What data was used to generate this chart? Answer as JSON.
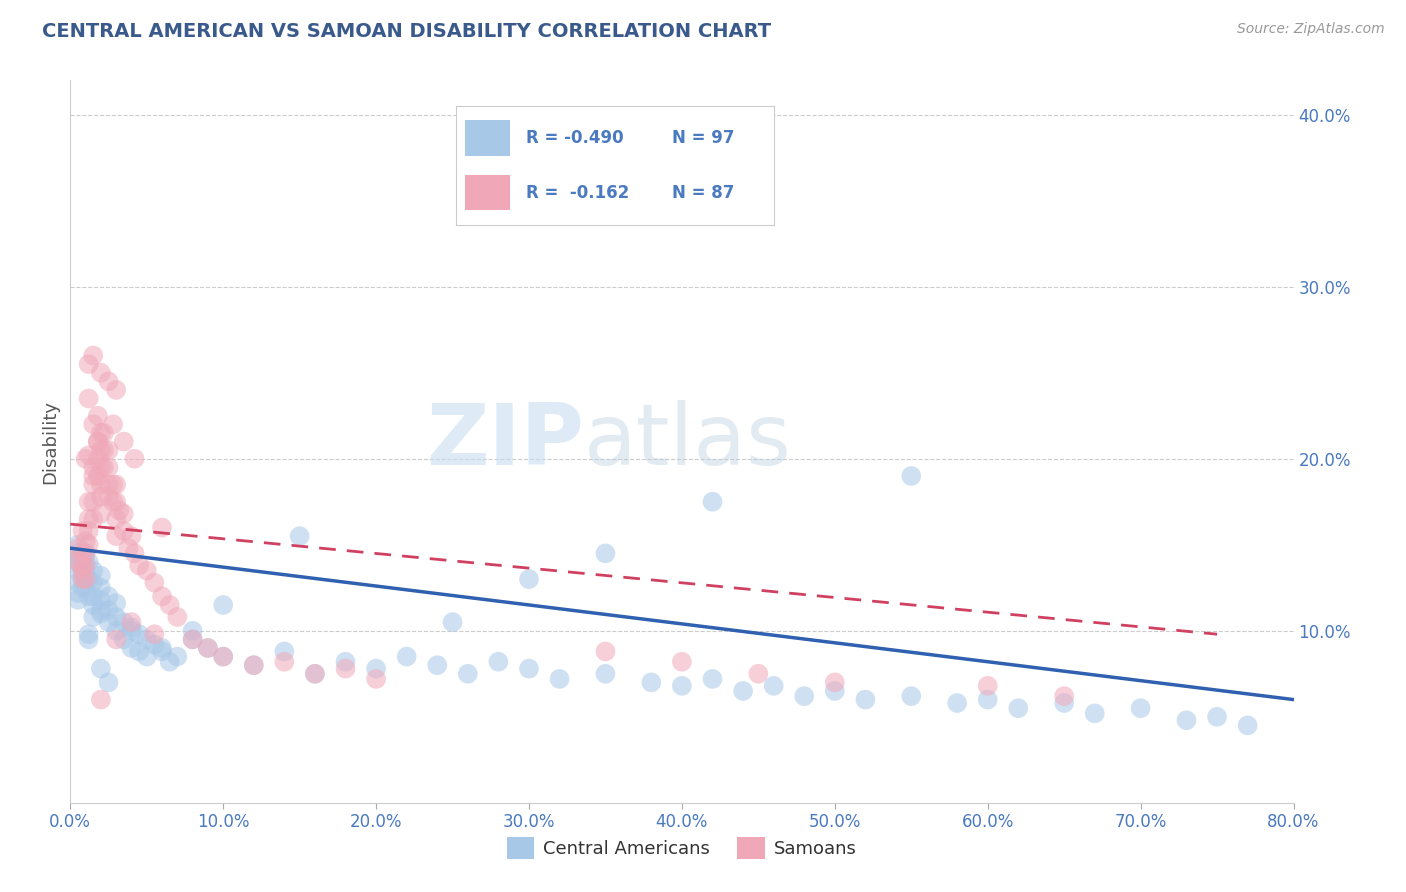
{
  "title": "CENTRAL AMERICAN VS SAMOAN DISABILITY CORRELATION CHART",
  "source": "Source: ZipAtlas.com",
  "ylabel": "Disability",
  "title_color": "#3a5a8c",
  "source_color": "#999999",
  "axis_label_color": "#555555",
  "tick_color": "#4a7abf",
  "background_color": "#ffffff",
  "xlim": [
    0.0,
    0.8
  ],
  "ylim": [
    0.0,
    0.42
  ],
  "xticks": [
    0.0,
    0.1,
    0.2,
    0.3,
    0.4,
    0.5,
    0.6,
    0.7,
    0.8
  ],
  "yticks": [
    0.1,
    0.2,
    0.3,
    0.4
  ],
  "ytick_labels": [
    "10.0%",
    "20.0%",
    "30.0%",
    "40.0%"
  ],
  "xtick_labels": [
    "0.0%",
    "10.0%",
    "20.0%",
    "30.0%",
    "40.0%",
    "50.0%",
    "60.0%",
    "70.0%",
    "80.0%"
  ],
  "grid_color": "#cccccc",
  "watermark_zip": "ZIP",
  "watermark_atlas": "atlas",
  "blue_color": "#a8c8e8",
  "pink_color": "#f0a8b8",
  "blue_line_color": "#3060b0",
  "pink_line_color": "#d04060",
  "legend_text_color": "#4a7abf",
  "legend_label_blue": "Central Americans",
  "legend_label_pink": "Samoans",
  "blue_scatter_x": [
    0.005,
    0.005,
    0.005,
    0.008,
    0.008,
    0.008,
    0.008,
    0.01,
    0.01,
    0.01,
    0.01,
    0.01,
    0.012,
    0.012,
    0.012,
    0.015,
    0.015,
    0.015,
    0.015,
    0.02,
    0.02,
    0.02,
    0.02,
    0.025,
    0.025,
    0.025,
    0.03,
    0.03,
    0.03,
    0.035,
    0.035,
    0.04,
    0.04,
    0.045,
    0.045,
    0.05,
    0.05,
    0.055,
    0.06,
    0.065,
    0.07,
    0.08,
    0.09,
    0.1,
    0.12,
    0.14,
    0.16,
    0.18,
    0.2,
    0.22,
    0.24,
    0.26,
    0.28,
    0.3,
    0.32,
    0.35,
    0.38,
    0.4,
    0.42,
    0.44,
    0.46,
    0.48,
    0.5,
    0.52,
    0.55,
    0.58,
    0.6,
    0.62,
    0.65,
    0.67,
    0.7,
    0.73,
    0.75,
    0.77,
    0.42,
    0.3,
    0.35,
    0.25,
    0.55,
    0.15,
    0.1,
    0.08,
    0.06,
    0.04,
    0.02,
    0.015,
    0.012,
    0.008,
    0.005,
    0.005,
    0.005,
    0.005,
    0.005,
    0.008,
    0.012,
    0.02,
    0.025
  ],
  "blue_scatter_y": [
    0.135,
    0.14,
    0.145,
    0.13,
    0.135,
    0.14,
    0.145,
    0.125,
    0.13,
    0.135,
    0.14,
    0.145,
    0.12,
    0.13,
    0.14,
    0.115,
    0.12,
    0.128,
    0.135,
    0.11,
    0.118,
    0.125,
    0.132,
    0.105,
    0.112,
    0.12,
    0.1,
    0.108,
    0.116,
    0.095,
    0.105,
    0.09,
    0.1,
    0.088,
    0.098,
    0.085,
    0.095,
    0.092,
    0.088,
    0.082,
    0.085,
    0.095,
    0.09,
    0.085,
    0.08,
    0.088,
    0.075,
    0.082,
    0.078,
    0.085,
    0.08,
    0.075,
    0.082,
    0.078,
    0.072,
    0.075,
    0.07,
    0.068,
    0.072,
    0.065,
    0.068,
    0.062,
    0.065,
    0.06,
    0.062,
    0.058,
    0.06,
    0.055,
    0.058,
    0.052,
    0.055,
    0.048,
    0.05,
    0.045,
    0.175,
    0.13,
    0.145,
    0.105,
    0.19,
    0.155,
    0.115,
    0.1,
    0.09,
    0.102,
    0.112,
    0.108,
    0.095,
    0.138,
    0.15,
    0.142,
    0.128,
    0.122,
    0.118,
    0.125,
    0.098,
    0.078,
    0.07
  ],
  "pink_scatter_x": [
    0.005,
    0.005,
    0.008,
    0.008,
    0.01,
    0.01,
    0.01,
    0.01,
    0.012,
    0.012,
    0.012,
    0.015,
    0.015,
    0.015,
    0.015,
    0.018,
    0.018,
    0.018,
    0.02,
    0.02,
    0.02,
    0.02,
    0.022,
    0.022,
    0.025,
    0.025,
    0.025,
    0.028,
    0.028,
    0.03,
    0.03,
    0.03,
    0.032,
    0.035,
    0.035,
    0.038,
    0.04,
    0.042,
    0.045,
    0.05,
    0.055,
    0.06,
    0.065,
    0.07,
    0.08,
    0.09,
    0.1,
    0.12,
    0.14,
    0.16,
    0.18,
    0.2,
    0.012,
    0.018,
    0.022,
    0.028,
    0.035,
    0.042,
    0.06,
    0.35,
    0.4,
    0.45,
    0.5,
    0.6,
    0.65,
    0.03,
    0.025,
    0.02,
    0.015,
    0.012,
    0.01,
    0.008,
    0.03,
    0.025,
    0.018,
    0.015,
    0.055,
    0.02,
    0.015,
    0.012,
    0.02,
    0.012,
    0.008,
    0.008,
    0.04,
    0.03,
    0.02
  ],
  "pink_scatter_y": [
    0.14,
    0.148,
    0.135,
    0.145,
    0.13,
    0.138,
    0.145,
    0.152,
    0.15,
    0.158,
    0.165,
    0.165,
    0.175,
    0.185,
    0.195,
    0.19,
    0.2,
    0.21,
    0.185,
    0.195,
    0.205,
    0.215,
    0.195,
    0.205,
    0.185,
    0.195,
    0.205,
    0.175,
    0.185,
    0.165,
    0.175,
    0.185,
    0.17,
    0.158,
    0.168,
    0.148,
    0.155,
    0.145,
    0.138,
    0.135,
    0.128,
    0.12,
    0.115,
    0.108,
    0.095,
    0.09,
    0.085,
    0.08,
    0.082,
    0.075,
    0.078,
    0.072,
    0.235,
    0.225,
    0.215,
    0.22,
    0.21,
    0.2,
    0.16,
    0.088,
    0.082,
    0.075,
    0.07,
    0.068,
    0.062,
    0.24,
    0.245,
    0.25,
    0.26,
    0.255,
    0.2,
    0.158,
    0.155,
    0.178,
    0.21,
    0.22,
    0.098,
    0.178,
    0.19,
    0.202,
    0.168,
    0.175,
    0.13,
    0.138,
    0.105,
    0.095,
    0.06
  ],
  "blue_trend_x": [
    0.0,
    0.8
  ],
  "blue_trend_y": [
    0.148,
    0.06
  ],
  "pink_trend_x": [
    0.0,
    0.75
  ],
  "pink_trend_y": [
    0.162,
    0.098
  ]
}
